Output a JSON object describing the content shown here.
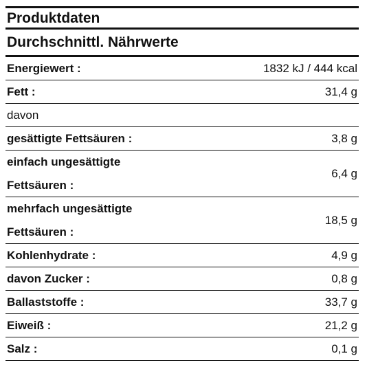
{
  "title": "Produktdaten",
  "subtitle": "Durchschnittl. Nährwerte",
  "rows": [
    {
      "label": "Energiewert :",
      "value": "1832 kJ / 444 kcal"
    },
    {
      "label": "Fett :",
      "value": "31,4 g"
    },
    {
      "label": "davon",
      "value": ""
    },
    {
      "label": "gesättigte Fettsäuren :",
      "value": "3,8 g"
    },
    {
      "label_line1": "einfach ungesättigte",
      "label_line2": "Fettsäuren :",
      "value": "6,4 g"
    },
    {
      "label_line1": "mehrfach ungesättigte",
      "label_line2": "Fettsäuren :",
      "value": "18,5 g"
    },
    {
      "label": "Kohlenhydrate :",
      "value": "4,9 g"
    },
    {
      "label": "davon Zucker :",
      "value": "0,8 g"
    },
    {
      "label": "Ballaststoffe :",
      "value": "33,7 g"
    },
    {
      "label": "Eiweiß :",
      "value": "21,2 g"
    },
    {
      "label": "Salz :",
      "value": "0,1 g"
    }
  ]
}
